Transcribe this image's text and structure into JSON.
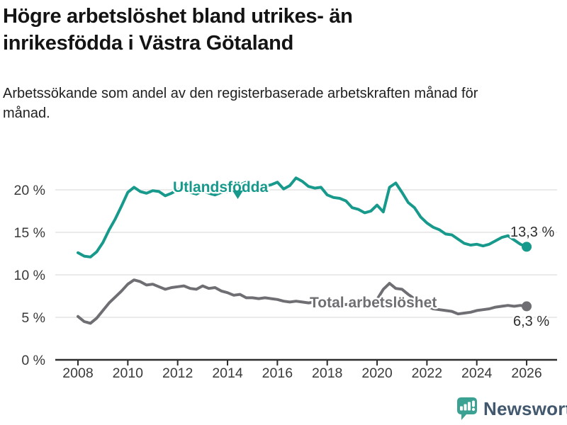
{
  "header": {
    "title": "Högre arbetslöshet bland utrikes- än inrikesfödda i Västra Götaland",
    "subtitle": "Arbetssökande som andel av den registerbaserade arbetskraften månad för månad."
  },
  "footer": {
    "brand": "Newsworthy",
    "brand_color": "#42586e",
    "logo_color": "#3ba193"
  },
  "chart_data": {
    "type": "line",
    "title": "Högre arbetslöshet bland utrikes- än inrikesfödda i Västra Götaland",
    "subtitle": "Arbetssökande som andel av den registerbaserade arbetskraften månad för månad.",
    "grid": true,
    "xlim": [
      2007.9,
      2027.2
    ],
    "ylim": [
      0,
      22.5
    ],
    "x_ticks": [
      2008,
      2010,
      2012,
      2014,
      2016,
      2018,
      2020,
      2022,
      2024,
      2026
    ],
    "x_tick_labels": [
      "2008",
      "2010",
      "2012",
      "2014",
      "2016",
      "2018",
      "2020",
      "2022",
      "2024",
      "2026"
    ],
    "y_ticks": [
      0,
      5,
      10,
      15,
      20
    ],
    "y_tick_labels": [
      "0 %",
      "5 %",
      "10 %",
      "15 %",
      "20 %"
    ],
    "x": [
      2008,
      2008.25,
      2008.5,
      2008.75,
      2009,
      2009.25,
      2009.5,
      2009.75,
      2010,
      2010.25,
      2010.5,
      2010.75,
      2011,
      2011.25,
      2011.5,
      2011.75,
      2012,
      2012.25,
      2012.5,
      2012.75,
      2013,
      2013.25,
      2013.5,
      2013.75,
      2014,
      2014.25,
      2014.5,
      2014.75,
      2015,
      2015.25,
      2015.5,
      2015.75,
      2016,
      2016.25,
      2016.5,
      2016.75,
      2017,
      2017.25,
      2017.5,
      2017.75,
      2018,
      2018.25,
      2018.5,
      2018.75,
      2019,
      2019.25,
      2019.5,
      2019.75,
      2020,
      2020.25,
      2020.5,
      2020.75,
      2021,
      2021.25,
      2021.5,
      2021.75,
      2022,
      2022.25,
      2022.5,
      2022.75,
      2023,
      2023.25,
      2023.5,
      2023.75,
      2024,
      2024.25,
      2024.5,
      2024.75,
      2025,
      2025.25,
      2025.5,
      2025.75,
      2026
    ],
    "series": [
      {
        "name": "Utlandsfödda",
        "color": "#17998c",
        "end_label": "13,3 %",
        "end_value": 13.3,
        "values": [
          12.6,
          12.2,
          12.1,
          12.7,
          13.8,
          15.3,
          16.6,
          18.1,
          19.7,
          20.3,
          19.8,
          19.6,
          19.9,
          19.8,
          19.3,
          19.6,
          20.0,
          20.4,
          19.7,
          19.5,
          19.9,
          19.6,
          19.4,
          19.7,
          19.8,
          20.1,
          20.6,
          20.9,
          20.3,
          20.1,
          20.4,
          20.6,
          20.9,
          20.1,
          20.5,
          21.4,
          21.0,
          20.4,
          20.2,
          20.3,
          19.4,
          19.1,
          19.0,
          18.7,
          17.9,
          17.7,
          17.3,
          17.5,
          18.2,
          17.4,
          20.3,
          20.8,
          19.7,
          18.5,
          17.9,
          16.8,
          16.1,
          15.6,
          15.3,
          14.8,
          14.7,
          14.2,
          13.7,
          13.5,
          13.6,
          13.4,
          13.6,
          14.0,
          14.4,
          14.6,
          14.1,
          13.6,
          13.3
        ]
      },
      {
        "name": "Total arbetslöshet",
        "color": "#6f6f73",
        "end_label": "6,3 %",
        "end_value": 6.3,
        "values": [
          5.1,
          4.5,
          4.3,
          4.9,
          5.8,
          6.7,
          7.4,
          8.1,
          8.9,
          9.4,
          9.2,
          8.8,
          8.9,
          8.6,
          8.3,
          8.5,
          8.6,
          8.7,
          8.4,
          8.3,
          8.7,
          8.4,
          8.5,
          8.1,
          7.9,
          7.6,
          7.7,
          7.3,
          7.3,
          7.2,
          7.3,
          7.2,
          7.1,
          6.9,
          6.8,
          6.9,
          6.8,
          6.7,
          6.8,
          6.7,
          6.6,
          6.5,
          6.6,
          6.5,
          6.6,
          6.7,
          6.6,
          6.7,
          7.1,
          8.3,
          9.0,
          8.4,
          8.3,
          7.7,
          7.2,
          6.7,
          6.3,
          6.0,
          5.9,
          5.8,
          5.7,
          5.4,
          5.5,
          5.6,
          5.8,
          5.9,
          6.0,
          6.2,
          6.3,
          6.4,
          6.3,
          6.4,
          6.3
        ]
      }
    ],
    "legend_position": "inline-labels"
  }
}
